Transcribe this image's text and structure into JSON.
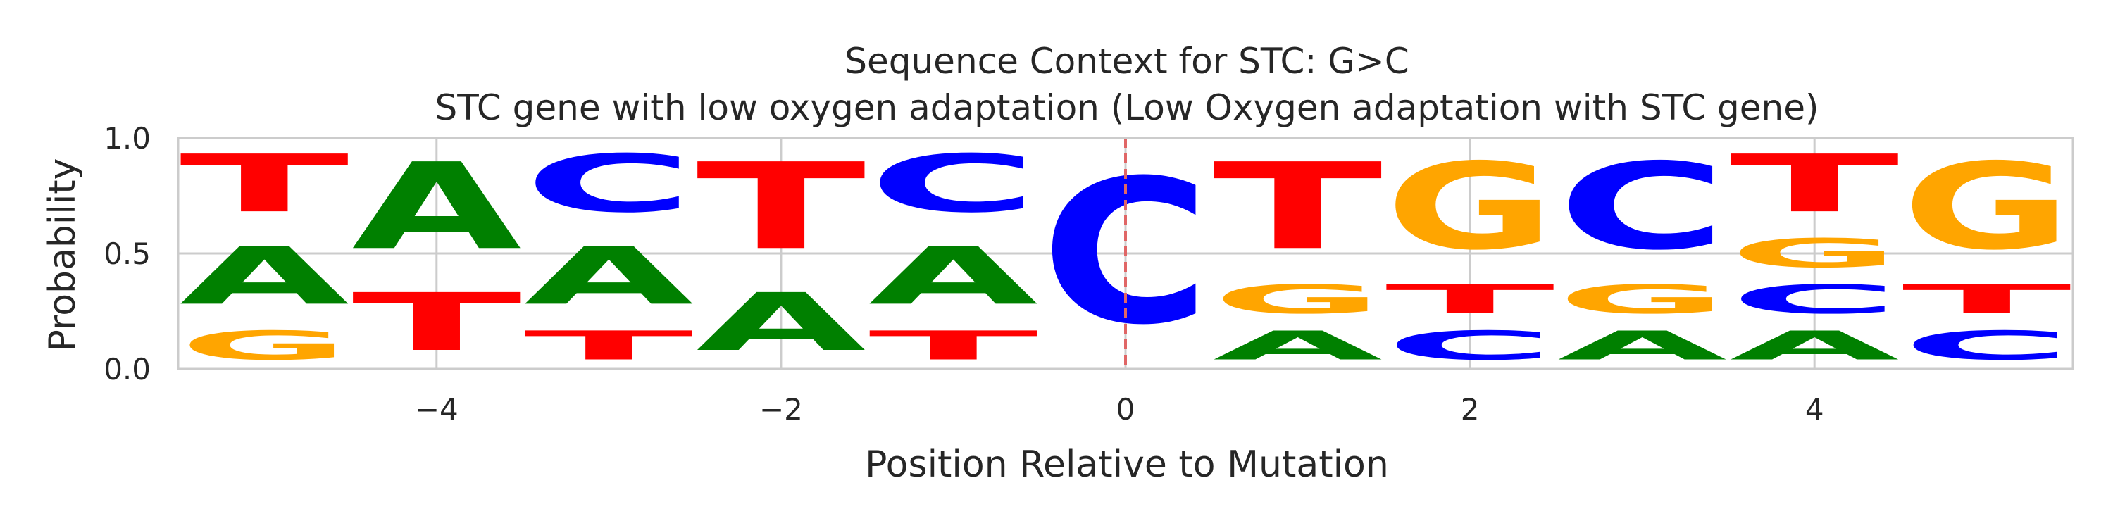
{
  "chart_data": {
    "type": "sequence-logo",
    "title": "Sequence Context for STC: G>C",
    "subtitle": "STC gene with low oxygen adaptation (Low Oxygen adaptation with STC gene)",
    "xlabel": "Position Relative to Mutation",
    "ylabel": "Probability",
    "xlim": [
      -5.5,
      5.5
    ],
    "ylim": [
      0,
      1
    ],
    "xticks": [
      -4,
      -2,
      0,
      2,
      4
    ],
    "xtick_labels": [
      "−4",
      "−2",
      "0",
      "2",
      "4"
    ],
    "yticks": [
      0,
      0.5,
      1
    ],
    "ytick_labels": [
      "0.0",
      "0.5",
      "1.0"
    ],
    "grid": true,
    "mutation_marker": {
      "position": 0,
      "color": "#e06666",
      "style": "dashed"
    },
    "letter_colors": {
      "A": "#008000",
      "C": "#0000ff",
      "G": "#ffa500",
      "T": "#ff0000"
    },
    "positions": [
      {
        "pos": -5,
        "stack": [
          {
            "base": "G",
            "prob": 0.2
          },
          {
            "base": "A",
            "prob": 0.4
          },
          {
            "base": "T",
            "prob": 0.4
          }
        ]
      },
      {
        "pos": -4,
        "stack": [
          {
            "base": "T",
            "prob": 0.4
          },
          {
            "base": "A",
            "prob": 0.6
          }
        ]
      },
      {
        "pos": -3,
        "stack": [
          {
            "base": "T",
            "prob": 0.2
          },
          {
            "base": "A",
            "prob": 0.4
          },
          {
            "base": "C",
            "prob": 0.4
          }
        ]
      },
      {
        "pos": -2,
        "stack": [
          {
            "base": "A",
            "prob": 0.4
          },
          {
            "base": "T",
            "prob": 0.6
          }
        ]
      },
      {
        "pos": -1,
        "stack": [
          {
            "base": "T",
            "prob": 0.2
          },
          {
            "base": "A",
            "prob": 0.4
          },
          {
            "base": "C",
            "prob": 0.4
          }
        ]
      },
      {
        "pos": 0,
        "stack": [
          {
            "base": "C",
            "prob": 1.0
          }
        ]
      },
      {
        "pos": 1,
        "stack": [
          {
            "base": "A",
            "prob": 0.2
          },
          {
            "base": "G",
            "prob": 0.2
          },
          {
            "base": "T",
            "prob": 0.6
          }
        ]
      },
      {
        "pos": 2,
        "stack": [
          {
            "base": "C",
            "prob": 0.2
          },
          {
            "base": "T",
            "prob": 0.2
          },
          {
            "base": "G",
            "prob": 0.6
          }
        ]
      },
      {
        "pos": 3,
        "stack": [
          {
            "base": "A",
            "prob": 0.2
          },
          {
            "base": "G",
            "prob": 0.2
          },
          {
            "base": "C",
            "prob": 0.6
          }
        ]
      },
      {
        "pos": 4,
        "stack": [
          {
            "base": "A",
            "prob": 0.2
          },
          {
            "base": "C",
            "prob": 0.2
          },
          {
            "base": "G",
            "prob": 0.2
          },
          {
            "base": "T",
            "prob": 0.4
          }
        ]
      },
      {
        "pos": 5,
        "stack": [
          {
            "base": "C",
            "prob": 0.2
          },
          {
            "base": "T",
            "prob": 0.2
          },
          {
            "base": "G",
            "prob": 0.6
          }
        ]
      }
    ]
  }
}
